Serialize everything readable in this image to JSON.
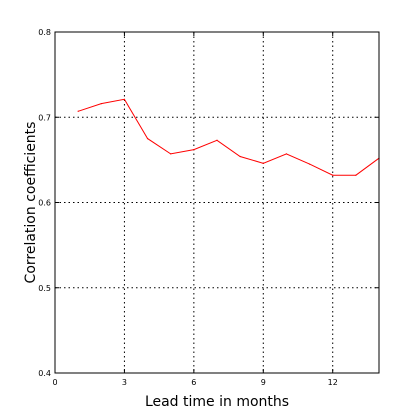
{
  "chart_data": {
    "type": "line",
    "title": "",
    "xlabel": "Lead time in months",
    "ylabel": "Correlation coefficients",
    "xlim": [
      0,
      14
    ],
    "ylim": [
      0.4,
      0.8
    ],
    "x_ticks": [
      0,
      3,
      6,
      9,
      12
    ],
    "y_ticks": [
      0.4,
      0.5,
      0.6,
      0.7,
      0.8
    ],
    "x_tick_labels": [
      "0",
      "3",
      "6",
      "9",
      "12"
    ],
    "y_tick_labels": [
      "0.4",
      "0.5",
      "0.6",
      "0.7",
      "0.8"
    ],
    "grid": true,
    "series": [
      {
        "color": "#ff0000",
        "x": [
          1,
          2,
          3,
          4,
          5,
          6,
          7,
          8,
          9,
          10,
          11,
          12,
          13,
          14
        ],
        "y": [
          0.707,
          0.716,
          0.721,
          0.675,
          0.657,
          0.662,
          0.673,
          0.654,
          0.646,
          0.657,
          0.645,
          0.632,
          0.632,
          0.652
        ]
      }
    ]
  }
}
